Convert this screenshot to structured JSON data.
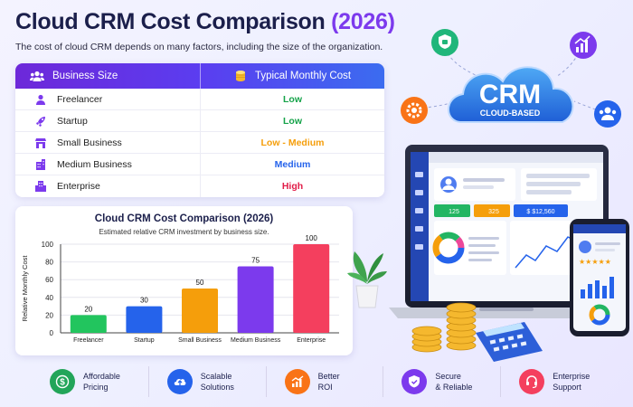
{
  "header": {
    "title_main": "Cloud CRM Cost Comparison",
    "title_year": "(2026)",
    "subtitle": "The cost of cloud CRM depends on many factors, including the size of the organization."
  },
  "table": {
    "col1": "Business Size",
    "col2": "Typical Monthly Cost",
    "rows": [
      {
        "size": "Freelancer",
        "cost": "Low",
        "color": "#16a34a",
        "icon": "user-icon"
      },
      {
        "size": "Startup",
        "cost": "Low",
        "color": "#16a34a",
        "icon": "rocket-icon"
      },
      {
        "size": "Small Business",
        "cost": "Low - Medium",
        "color": "#f59e0b",
        "icon": "store-icon"
      },
      {
        "size": "Medium Business",
        "cost": "Medium",
        "color": "#2563eb",
        "icon": "building-icon"
      },
      {
        "size": "Enterprise",
        "cost": "High",
        "color": "#e11d48",
        "icon": "office-icon"
      }
    ]
  },
  "chart_data": {
    "type": "bar",
    "title": "Cloud CRM Cost Comparison (2026)",
    "subtitle": "Estimated relative CRM investment by business size.",
    "ylabel": "Relative Monthly Cost",
    "xlabel": "",
    "ylim": [
      0,
      100
    ],
    "yticks": [
      0,
      20,
      40,
      60,
      80,
      100
    ],
    "categories": [
      "Freelancer",
      "Startup",
      "Small Business",
      "Medium Business",
      "Enterprise"
    ],
    "values": [
      20,
      30,
      50,
      75,
      100
    ],
    "colors": [
      "#22c55e",
      "#2563eb",
      "#f59e0b",
      "#7c3aed",
      "#f43f5e"
    ],
    "grid": true
  },
  "illustration": {
    "cloud_title": "CRM",
    "cloud_sub": "CLOUD-BASED",
    "stat1": "125",
    "stat2": "325",
    "stat3": "$ $12,560"
  },
  "features": [
    {
      "line1": "Affordable",
      "line2": "Pricing",
      "color": "#22a559",
      "icon": "dollar-icon"
    },
    {
      "line1": "Scalable",
      "line2": "Solutions",
      "color": "#2563eb",
      "icon": "cloud-upload-icon"
    },
    {
      "line1": "Better",
      "line2": "ROI",
      "color": "#f97316",
      "icon": "growth-chart-icon"
    },
    {
      "line1": "Secure",
      "line2": "& Reliable",
      "color": "#7c3aed",
      "icon": "shield-icon"
    },
    {
      "line1": "Enterprise",
      "line2": "Support",
      "color": "#f43f5e",
      "icon": "headset-icon"
    }
  ]
}
